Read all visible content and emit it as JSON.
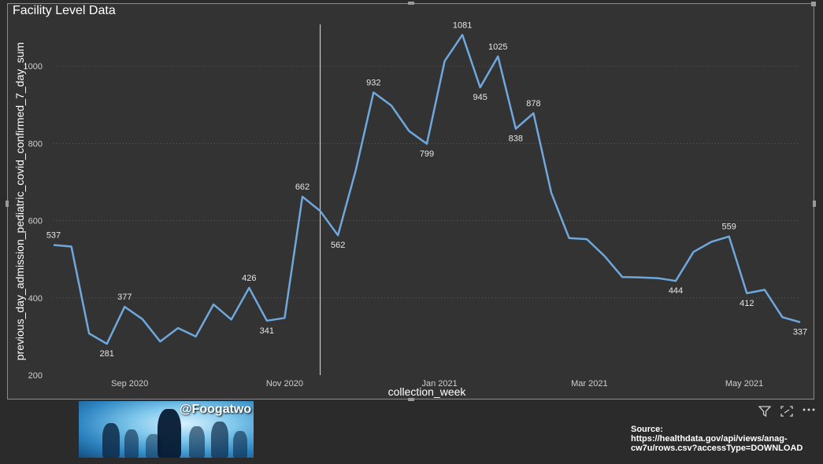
{
  "visual": {
    "title": "Facility Level Data"
  },
  "chart_data": {
    "type": "line",
    "xlabel": "collection_week",
    "ylabel": "previous_day_admission_pediatric_covid_confirmed_7_day_sum",
    "ylim": [
      200,
      1100
    ],
    "y_ticks": [
      200,
      400,
      600,
      800,
      1000
    ],
    "x_ticks": [
      "Sep 2020",
      "Nov 2020",
      "Jan 2021",
      "Mar 2021",
      "May 2021"
    ],
    "grid": "horizontal dotted",
    "line_color": "#6fa8dc",
    "x": [
      "2020-08-02",
      "2020-08-09",
      "2020-08-16",
      "2020-08-23",
      "2020-08-30",
      "2020-09-06",
      "2020-09-13",
      "2020-09-20",
      "2020-09-27",
      "2020-10-04",
      "2020-10-11",
      "2020-10-18",
      "2020-10-25",
      "2020-11-01",
      "2020-11-08",
      "2020-11-15",
      "2020-11-22",
      "2020-11-29",
      "2020-12-06",
      "2020-12-13",
      "2020-12-20",
      "2020-12-27",
      "2021-01-03",
      "2021-01-10",
      "2021-01-17",
      "2021-01-24",
      "2021-01-31",
      "2021-02-07",
      "2021-02-14",
      "2021-02-21",
      "2021-02-28",
      "2021-03-07",
      "2021-03-14",
      "2021-03-21",
      "2021-03-28",
      "2021-04-04",
      "2021-04-11",
      "2021-04-18",
      "2021-04-25",
      "2021-05-02",
      "2021-05-09",
      "2021-05-16",
      "2021-05-23"
    ],
    "values": [
      537,
      533,
      308,
      281,
      377,
      345,
      287,
      322,
      300,
      383,
      344,
      426,
      341,
      348,
      662,
      625,
      562,
      730,
      932,
      898,
      832,
      799,
      1013,
      1081,
      945,
      1025,
      838,
      878,
      672,
      555,
      552,
      508,
      454,
      453,
      451,
      444,
      519,
      545,
      559,
      412,
      421,
      350,
      337
    ],
    "data_labels": [
      {
        "index": 0,
        "text": "537"
      },
      {
        "index": 3,
        "text": "281"
      },
      {
        "index": 4,
        "text": "377"
      },
      {
        "index": 11,
        "text": "426"
      },
      {
        "index": 12,
        "text": "341"
      },
      {
        "index": 14,
        "text": "662"
      },
      {
        "index": 16,
        "text": "562"
      },
      {
        "index": 18,
        "text": "932"
      },
      {
        "index": 21,
        "text": "799"
      },
      {
        "index": 23,
        "text": "1081"
      },
      {
        "index": 24,
        "text": "945"
      },
      {
        "index": 25,
        "text": "1025"
      },
      {
        "index": 26,
        "text": "838"
      },
      {
        "index": 27,
        "text": "878"
      },
      {
        "index": 35,
        "text": "444"
      },
      {
        "index": 38,
        "text": "559"
      },
      {
        "index": 39,
        "text": "412"
      },
      {
        "index": 42,
        "text": "337"
      }
    ],
    "reference_line_x": "2020-11-15"
  },
  "banner": {
    "handle": "@Foogatwo"
  },
  "source_text": "Source: https://healthdata.gov/api/views/anag-cw7u/rows.csv?accessType=DOWNLOAD",
  "icons": [
    "filter-icon",
    "focus-mode-icon",
    "more-options-icon"
  ]
}
